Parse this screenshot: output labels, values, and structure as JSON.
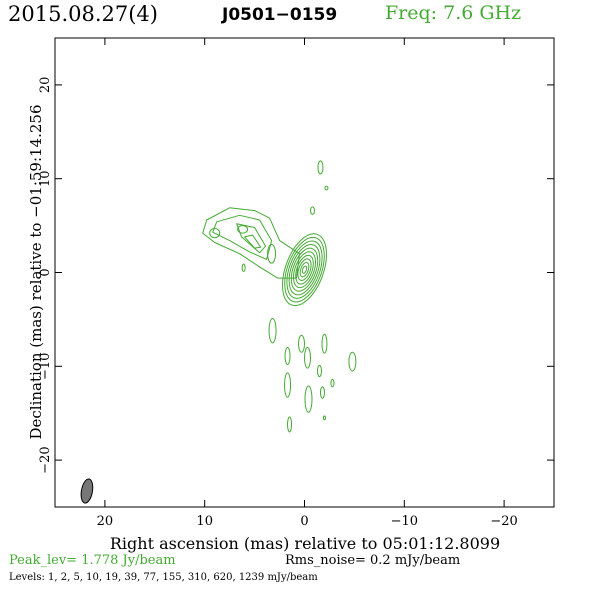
{
  "header": {
    "date": "2015.08.27(4)",
    "source": "J0501−0159",
    "freq": "Freq: 7.6 GHz"
  },
  "footer": {
    "peak": "Peak_lev=  1.778 Jy/beam",
    "rms": "Rms_noise=  0.2 mJy/beam",
    "levels": "Levels:   1,   2,   5,  10,  19,  39,  77, 155, 310, 620, 1239 mJy/beam"
  },
  "colors": {
    "contour": "#44aa33",
    "beam_fill": "#777777",
    "axis": "#000000"
  },
  "chart_data": {
    "type": "contour",
    "xlabel": "Right ascension (mas) relative to 05:01:12.8099",
    "ylabel": "Declination (mas) relative to −01:59:14.256",
    "xlim": [
      25,
      -25
    ],
    "ylim": [
      -25,
      25
    ],
    "xticks": [
      20,
      10,
      0,
      -10,
      -20
    ],
    "xtick_labels": [
      "20",
      "10",
      "0",
      "−10",
      "−20"
    ],
    "yticks": [
      20,
      10,
      0,
      -10,
      -20
    ],
    "ytick_labels": [
      "20",
      "10",
      "0",
      "−10",
      "−20"
    ],
    "peak_jy_per_beam": 1.778,
    "rms_mjy_per_beam": 0.2,
    "contour_levels_mjy_per_beam": [
      1,
      2,
      5,
      10,
      19,
      39,
      77,
      155,
      310,
      620,
      1239
    ],
    "core": {
      "x": 0.0,
      "y": 0.3,
      "rings": 10,
      "major_mas": 4.0,
      "minor_mas": 1.9,
      "pa_deg": 20
    },
    "jet_contours": [
      {
        "points": [
          [
            0.5,
            2.0
          ],
          [
            2.5,
            3.4
          ],
          [
            3.5,
            5.8
          ],
          [
            5.0,
            6.6
          ],
          [
            7.5,
            6.9
          ],
          [
            9.8,
            5.6
          ],
          [
            10.2,
            4.2
          ],
          [
            9.0,
            3.2
          ],
          [
            6.5,
            2.0
          ],
          [
            4.5,
            0.6
          ],
          [
            2.7,
            -0.6
          ],
          [
            0.8,
            -0.6
          ]
        ]
      },
      {
        "points": [
          [
            3.3,
            3.4
          ],
          [
            4.5,
            5.6
          ],
          [
            6.5,
            6.1
          ],
          [
            8.8,
            5.4
          ],
          [
            9.2,
            4.3
          ],
          [
            7.5,
            3.4
          ],
          [
            5.5,
            2.2
          ],
          [
            3.8,
            1.4
          ]
        ]
      },
      {
        "points": [
          [
            3.9,
            2.8
          ],
          [
            5.0,
            4.8
          ],
          [
            6.8,
            5.2
          ],
          [
            6.3,
            3.8
          ],
          [
            4.5,
            2.1
          ]
        ]
      },
      {
        "points": [
          [
            4.4,
            2.7
          ],
          [
            5.2,
            4.0
          ],
          [
            6.0,
            3.8
          ],
          [
            5.0,
            2.6
          ]
        ]
      }
    ],
    "components": [
      {
        "x": 6.2,
        "y": 4.6,
        "rx_mas": 0.5,
        "ry_mas": 0.4
      },
      {
        "x": 9.0,
        "y": 4.2,
        "rx_mas": 0.5,
        "ry_mas": 0.5
      },
      {
        "x": -1.6,
        "y": 11.2,
        "rx_mas": 0.25,
        "ry_mas": 0.7
      },
      {
        "x": -2.2,
        "y": 9.0,
        "rx_mas": 0.15,
        "ry_mas": 0.2
      },
      {
        "x": -0.8,
        "y": 6.6,
        "rx_mas": 0.2,
        "ry_mas": 0.4
      },
      {
        "x": 3.3,
        "y": 2.0,
        "rx_mas": 0.4,
        "ry_mas": 1.0
      },
      {
        "x": 6.1,
        "y": 0.5,
        "rx_mas": 0.15,
        "ry_mas": 0.4
      },
      {
        "x": 3.2,
        "y": -6.2,
        "rx_mas": 0.35,
        "ry_mas": 1.3
      },
      {
        "x": 1.7,
        "y": -8.9,
        "rx_mas": 0.25,
        "ry_mas": 0.9
      },
      {
        "x": 0.3,
        "y": -7.6,
        "rx_mas": 0.3,
        "ry_mas": 0.9
      },
      {
        "x": -0.3,
        "y": -9.1,
        "rx_mas": 0.3,
        "ry_mas": 1.1
      },
      {
        "x": -2.0,
        "y": -7.6,
        "rx_mas": 0.25,
        "ry_mas": 1.0
      },
      {
        "x": -0.4,
        "y": -13.5,
        "rx_mas": 0.35,
        "ry_mas": 1.4
      },
      {
        "x": 1.7,
        "y": -12.0,
        "rx_mas": 0.3,
        "ry_mas": 1.3
      },
      {
        "x": -4.8,
        "y": -9.5,
        "rx_mas": 0.35,
        "ry_mas": 1.0
      },
      {
        "x": -1.5,
        "y": -10.5,
        "rx_mas": 0.2,
        "ry_mas": 0.6
      },
      {
        "x": -1.8,
        "y": -12.8,
        "rx_mas": 0.2,
        "ry_mas": 0.6
      },
      {
        "x": -2.8,
        "y": -11.8,
        "rx_mas": 0.15,
        "ry_mas": 0.4
      },
      {
        "x": 1.5,
        "y": -16.2,
        "rx_mas": 0.2,
        "ry_mas": 0.8
      },
      {
        "x": -2.0,
        "y": -15.5,
        "rx_mas": 0.1,
        "ry_mas": 0.2
      }
    ],
    "beam": {
      "x": 21.8,
      "y": -23.3,
      "major_mas": 2.6,
      "minor_mas": 1.1,
      "pa_deg": 10
    }
  }
}
